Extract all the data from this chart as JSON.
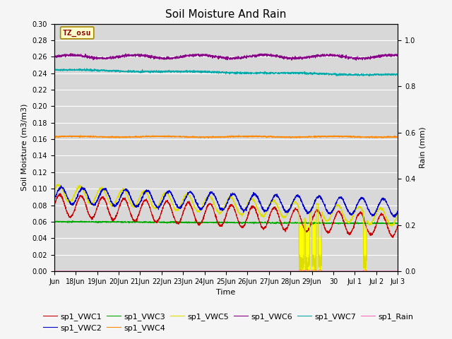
{
  "title": "Soil Moisture And Rain",
  "xlabel": "Time",
  "ylabel_left": "Soil Moisture (m3/m3)",
  "ylabel_right": "Rain (mm)",
  "ylim_left": [
    0.0,
    0.3
  ],
  "ylim_right": [
    0.0,
    1.071
  ],
  "x_tick_labels": [
    "Jun",
    "18Jun",
    "19Jun",
    "20Jun",
    "21Jun",
    "22Jun",
    "23Jun",
    "24Jun",
    "25Jun",
    "26Jun",
    "27Jun",
    "28Jun",
    "29Jun",
    "30",
    "Jul 1",
    "Jul 2",
    "Jul 3"
  ],
  "x_tick_positions": [
    0,
    1,
    2,
    3,
    4,
    5,
    6,
    7,
    8,
    9,
    10,
    11,
    12,
    13,
    14,
    15,
    16
  ],
  "annotation_text": "TZ_osu",
  "annotation_color": "#880000",
  "annotation_bg": "#ffffcc",
  "annotation_border": "#aa8800",
  "series_colors": {
    "sp1_VWC1": "#cc0000",
    "sp1_VWC2": "#0000cc",
    "sp1_VWC3": "#00aa00",
    "sp1_VWC4": "#ff8800",
    "sp1_VWC5": "#dddd00",
    "sp1_VWC6": "#880088",
    "sp1_VWC7": "#00aaaa",
    "sp1_Rain": "#ff44aa"
  },
  "background_color": "#d8d8d8",
  "grid_color": "#ffffff",
  "fig_color": "#f5f5f5",
  "legend_fontsize": 8,
  "title_fontsize": 11
}
